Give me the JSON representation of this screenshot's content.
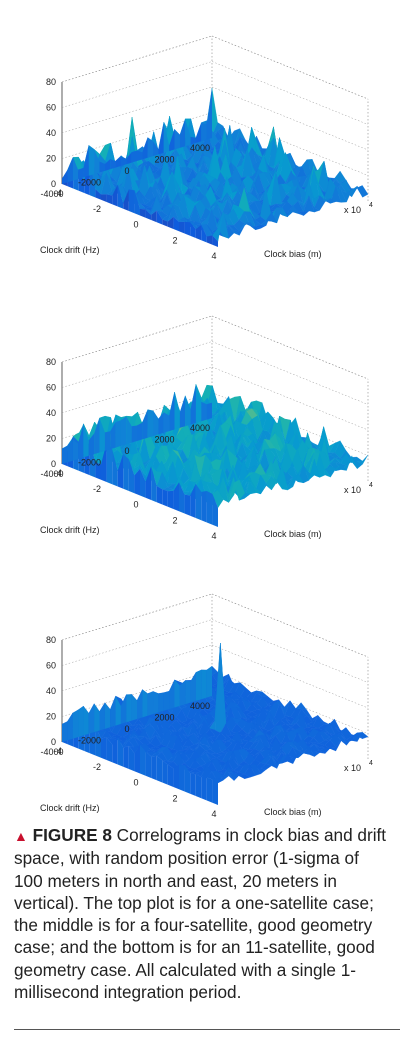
{
  "figure": {
    "label": "FIGURE 8",
    "marker": "▲",
    "caption_text": " Correlograms in clock bias and drift space, with random position error (1-sigma of 100 meters in north and east, 20 meters in vertical). The top plot is for a one-satellite case; the middle is for a four-satellite, good geometry case; and the bottom is for an 11-satellite, good geometry case. All calculated with a single 1-millisecond integration period."
  },
  "chart_data": [
    {
      "type": "surface",
      "case": "one-satellite",
      "zlim": [
        0,
        80
      ],
      "z_ticks": [
        "0",
        "20",
        "40",
        "60",
        "80"
      ],
      "xlabel": "Clock bias (m)",
      "x_ticks": [
        "-4",
        "-2",
        "0",
        "2",
        "4"
      ],
      "x_exponent": "x 10",
      "x_exponent_power": "4",
      "ylabel": "Clock drift (Hz)",
      "y_ticks": [
        "4000",
        "2000",
        "0",
        "-2000",
        "-4000"
      ],
      "surface": {
        "floor": 4,
        "noise": 14,
        "peak": 0,
        "colormap": "parula"
      }
    },
    {
      "type": "surface",
      "case": "four-satellite, good geometry",
      "zlim": [
        0,
        80
      ],
      "z_ticks": [
        "0",
        "20",
        "40",
        "60",
        "80"
      ],
      "xlabel": "Clock bias (m)",
      "x_ticks": [
        "-4",
        "-2",
        "0",
        "2",
        "4"
      ],
      "x_exponent": "x 10",
      "x_exponent_power": "4",
      "ylabel": "Clock drift (Hz)",
      "y_ticks": [
        "4000",
        "2000",
        "0",
        "-2000",
        "-4000"
      ],
      "surface": {
        "floor": 12,
        "noise": 20,
        "peak": 36,
        "colormap": "parula"
      }
    },
    {
      "type": "surface",
      "case": "11-satellite, good geometry",
      "zlim": [
        0,
        80
      ],
      "z_ticks": [
        "0",
        "20",
        "40",
        "60",
        "80"
      ],
      "xlabel": "Clock bias (m)",
      "x_ticks": [
        "-4",
        "-2",
        "0",
        "2",
        "4"
      ],
      "x_exponent": "x 10",
      "x_exponent_power": "4",
      "ylabel": "Clock drift (Hz)",
      "y_ticks": [
        "4000",
        "2000",
        "0",
        "-2000",
        "-4000"
      ],
      "surface": {
        "floor": 14,
        "noise": 10,
        "peak": 83,
        "colormap": "parula"
      }
    }
  ]
}
